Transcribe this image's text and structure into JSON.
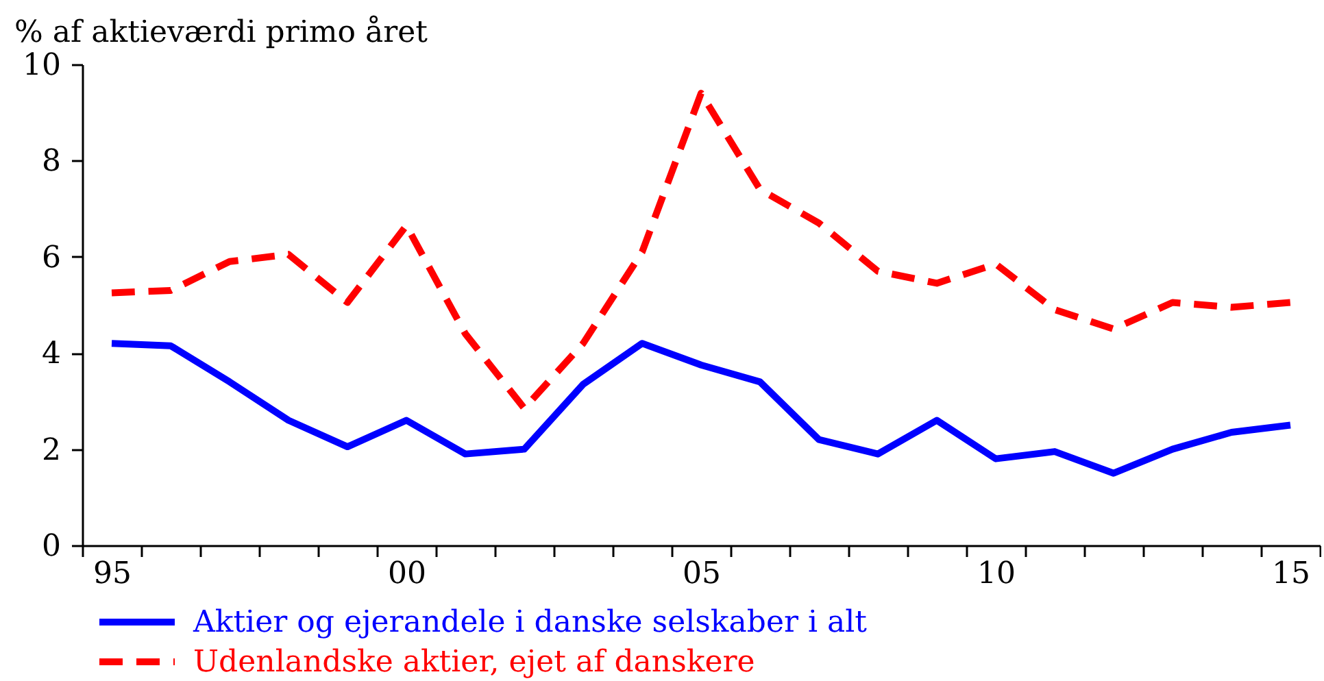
{
  "chart_data": {
    "type": "line",
    "ylabel": "% af aktieværdi primo året",
    "categories": [
      "95",
      null,
      null,
      null,
      null,
      "00",
      null,
      null,
      null,
      null,
      "05",
      null,
      null,
      null,
      null,
      "10",
      null,
      null,
      null,
      null,
      "15"
    ],
    "series": [
      {
        "name": "Aktier og ejerandele i danske selskaber i alt",
        "color": "#0000ff",
        "line_style": "solid",
        "values": [
          4.2,
          4.15,
          3.4,
          2.6,
          2.05,
          2.6,
          1.9,
          2.0,
          3.35,
          4.2,
          3.75,
          3.4,
          2.2,
          1.9,
          2.6,
          1.8,
          1.95,
          1.5,
          2.0,
          2.35,
          2.5
        ]
      },
      {
        "name": "Udenlandske aktier, ejet af danskere",
        "color": "#ff0000",
        "line_style": "dashed",
        "values": [
          5.25,
          5.3,
          5.9,
          6.05,
          5.05,
          6.65,
          4.4,
          2.85,
          4.2,
          6.1,
          9.4,
          7.4,
          6.7,
          5.7,
          5.45,
          5.85,
          4.9,
          4.5,
          5.05,
          4.95,
          5.05
        ]
      }
    ],
    "ylim": [
      0,
      10
    ],
    "yticks": [
      0,
      2,
      4,
      6,
      8,
      10
    ],
    "legend": "bottom"
  }
}
